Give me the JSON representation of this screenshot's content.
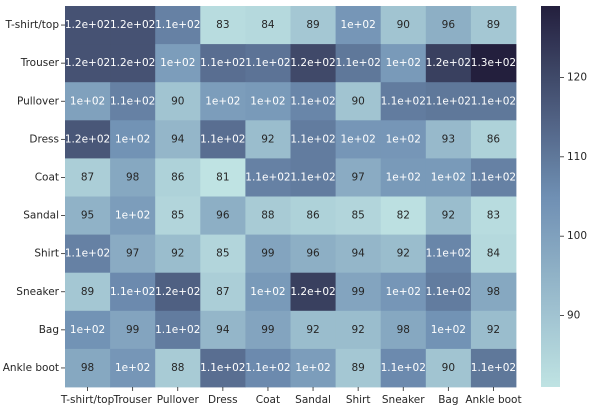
{
  "chart_data": {
    "type": "heatmap",
    "title": "",
    "xlabel": "",
    "ylabel": "",
    "rows": [
      "T-shirt/top",
      "Trouser",
      "Pullover",
      "Dress",
      "Coat",
      "Sandal",
      "Shirt",
      "Sneaker",
      "Bag",
      "Ankle boot"
    ],
    "columns": [
      "T-shirt/top",
      "Trouser",
      "Pullover",
      "Dress",
      "Coat",
      "Sandal",
      "Shirt",
      "Sneaker",
      "Bag",
      "Ankle boot"
    ],
    "values": [
      [
        118,
        118,
        108,
        83,
        84,
        89,
        103,
        90,
        96,
        89
      ],
      [
        118,
        118,
        101,
        112,
        111,
        120,
        110,
        102,
        122,
        129
      ],
      [
        100,
        108,
        90,
        101,
        102,
        107,
        90,
        109,
        110,
        110
      ],
      [
        117,
        104,
        94,
        112,
        92,
        109,
        103,
        103,
        93,
        86
      ],
      [
        87,
        98,
        86,
        81,
        108,
        109,
        97,
        102,
        102,
        108
      ],
      [
        95,
        101,
        85,
        96,
        88,
        86,
        85,
        82,
        92,
        83
      ],
      [
        108,
        97,
        92,
        85,
        99,
        96,
        94,
        92,
        107,
        84
      ],
      [
        89,
        106,
        115,
        87,
        102,
        122,
        99,
        103,
        109,
        98
      ],
      [
        104,
        99,
        109,
        94,
        99,
        92,
        92,
        98,
        104,
        92
      ],
      [
        98,
        103,
        88,
        112,
        106,
        101,
        89,
        106,
        90,
        110
      ]
    ],
    "labels": [
      [
        "1.2e+02",
        "1.2e+02",
        "1.1e+02",
        "83",
        "84",
        "89",
        "1e+02",
        "90",
        "96",
        "89"
      ],
      [
        "1.2e+02",
        "1.2e+02",
        "1e+02",
        "1.1e+02",
        "1.1e+02",
        "1.2e+02",
        "1.1e+02",
        "1e+02",
        "1.2e+02",
        "1.3e+02"
      ],
      [
        "1e+02",
        "1.1e+02",
        "90",
        "1e+02",
        "1e+02",
        "1.1e+02",
        "90",
        "1.1e+02",
        "1.1e+02",
        "1.1e+02"
      ],
      [
        "1.2e+02",
        "1e+02",
        "94",
        "1.1e+02",
        "92",
        "1.1e+02",
        "1e+02",
        "1e+02",
        "93",
        "86"
      ],
      [
        "87",
        "98",
        "86",
        "81",
        "1.1e+02",
        "1.1e+02",
        "97",
        "1e+02",
        "1e+02",
        "1.1e+02"
      ],
      [
        "95",
        "1e+02",
        "85",
        "96",
        "88",
        "86",
        "85",
        "82",
        "92",
        "83"
      ],
      [
        "1.1e+02",
        "97",
        "92",
        "85",
        "99",
        "96",
        "94",
        "92",
        "1.1e+02",
        "84"
      ],
      [
        "89",
        "1.1e+02",
        "1.2e+02",
        "87",
        "1e+02",
        "1.2e+02",
        "99",
        "1e+02",
        "1.1e+02",
        "98"
      ],
      [
        "1e+02",
        "99",
        "1.1e+02",
        "94",
        "99",
        "92",
        "92",
        "98",
        "1e+02",
        "92"
      ],
      [
        "98",
        "1e+02",
        "88",
        "1.1e+02",
        "1.1e+02",
        "1e+02",
        "89",
        "1.1e+02",
        "90",
        "1.1e+02"
      ]
    ],
    "colorbar": {
      "min": 81,
      "max": 129,
      "ticks": [
        90,
        100,
        110,
        120
      ],
      "tick_labels": [
        "90",
        "100",
        "110",
        "120"
      ]
    },
    "colors": {
      "low": "#bfe3e3",
      "mid": "#6f8fb3",
      "high": "#231f3d",
      "text_dark": "#262626",
      "text_light": "#ffffff"
    }
  }
}
